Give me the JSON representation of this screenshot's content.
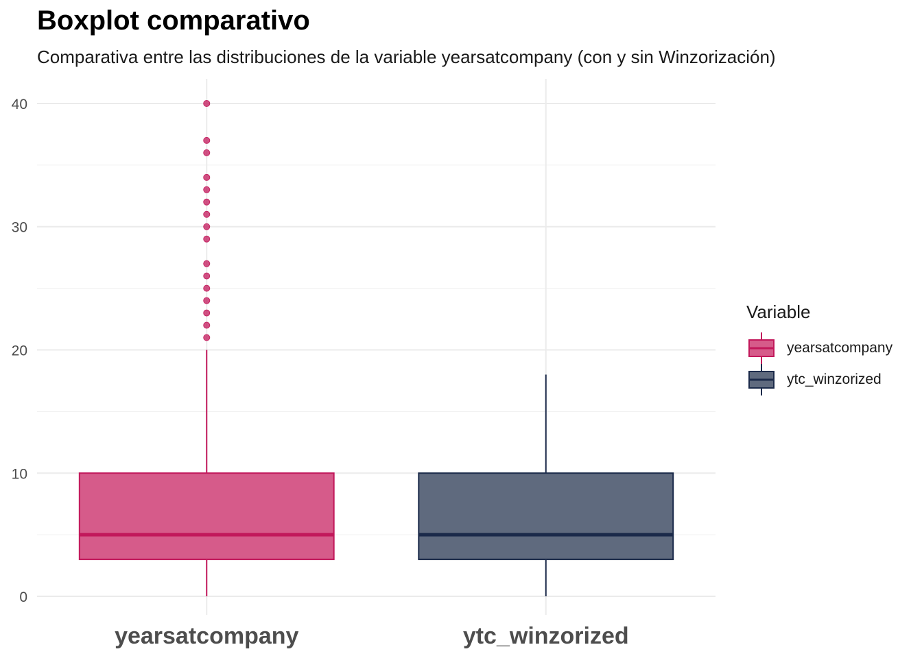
{
  "chart_data": {
    "type": "boxplot",
    "title": "Boxplot comparativo",
    "subtitle": "Comparativa entre las distribuciones de la variable yearsatcompany (con y sin Winzorización)",
    "xlabel": "",
    "ylabel": "",
    "ylim": [
      -1.5,
      42
    ],
    "yticks": [
      0,
      10,
      20,
      30,
      40
    ],
    "grid": true,
    "legend": {
      "title": "Variable",
      "position": "right"
    },
    "categories": [
      "yearsatcompany",
      "ytc_winzorized"
    ],
    "series": [
      {
        "name": "yearsatcompany",
        "color": "#C2185B",
        "fill": "#D65B8A",
        "min": 0,
        "q1": 3,
        "median": 5,
        "q3": 10,
        "max": 20,
        "outliers": [
          21,
          22,
          23,
          24,
          25,
          26,
          27,
          29,
          30,
          31,
          32,
          33,
          34,
          36,
          37,
          40
        ]
      },
      {
        "name": "ytc_winzorized",
        "color": "#1B2A4A",
        "fill": "#5F6A7E",
        "min": 0,
        "q1": 3,
        "median": 5,
        "q3": 10,
        "max": 18,
        "outliers": []
      }
    ]
  }
}
